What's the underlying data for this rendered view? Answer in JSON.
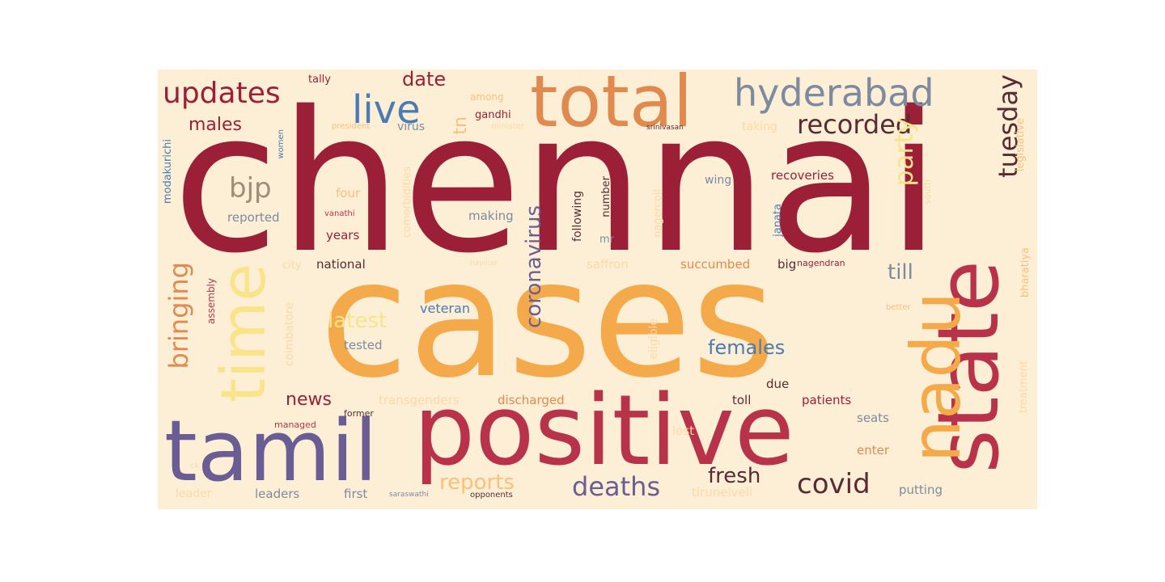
{
  "background": "#fdefd6",
  "palette": {
    "crimson": "#9b1f37",
    "red": "#b8334a",
    "orange": "#f4a94a",
    "lightorange": "#f9c07a",
    "peach": "#fcd9a6",
    "yellow": "#f9e48a",
    "rust": "#e08a4f",
    "purple": "#6a5d93",
    "blue": "#4a7cb3",
    "gray": "#7d8aa0",
    "taupe": "#a08c7a",
    "dark": "#5a2a33"
  },
  "words": [
    {
      "text": "chennai",
      "color": "crimson"
    },
    {
      "text": "cases",
      "color": "orange"
    },
    {
      "text": "positive",
      "color": "red"
    },
    {
      "text": "total",
      "color": "rust"
    },
    {
      "text": "tamil",
      "color": "purple"
    },
    {
      "text": "state",
      "color": "red"
    },
    {
      "text": "nadu",
      "color": "orange"
    },
    {
      "text": "time",
      "color": "yellow"
    },
    {
      "text": "hyderabad",
      "color": "gray"
    },
    {
      "text": "updates",
      "color": "crimson"
    },
    {
      "text": "live",
      "color": "blue"
    },
    {
      "text": "recorded",
      "color": "dark"
    },
    {
      "text": "bringing",
      "color": "rust"
    },
    {
      "text": "tuesday",
      "color": "dark"
    },
    {
      "text": "deaths",
      "color": "purple"
    },
    {
      "text": "covid",
      "color": "dark"
    },
    {
      "text": "bjp",
      "color": "taupe"
    },
    {
      "text": "party",
      "color": "yellow"
    },
    {
      "text": "coronavirus",
      "color": "purple"
    },
    {
      "text": "fresh",
      "color": "dark"
    },
    {
      "text": "reports",
      "color": "lightorange"
    },
    {
      "text": "females",
      "color": "blue"
    },
    {
      "text": "latest",
      "color": "yellow"
    },
    {
      "text": "date",
      "color": "crimson"
    },
    {
      "text": "males",
      "color": "crimson"
    },
    {
      "text": "till",
      "color": "gray"
    },
    {
      "text": "news",
      "color": "crimson"
    },
    {
      "text": "tn",
      "color": "lightorange"
    },
    {
      "text": "veteran",
      "color": "blue"
    },
    {
      "text": "discharged",
      "color": "rust"
    },
    {
      "text": "patients",
      "color": "crimson"
    },
    {
      "text": "transgenders",
      "color": "peach"
    },
    {
      "text": "putting",
      "color": "gray"
    },
    {
      "text": "tirunelveli",
      "color": "peach"
    },
    {
      "text": "succumbed",
      "color": "rust"
    },
    {
      "text": "saffron",
      "color": "peach"
    },
    {
      "text": "national",
      "color": "dark"
    },
    {
      "text": "recoveries",
      "color": "crimson"
    },
    {
      "text": "reported",
      "color": "gray"
    },
    {
      "text": "years",
      "color": "crimson"
    },
    {
      "text": "four",
      "color": "lightorange"
    },
    {
      "text": "making",
      "color": "gray"
    },
    {
      "text": "tested",
      "color": "gray"
    },
    {
      "text": "leaders",
      "color": "gray"
    },
    {
      "text": "first",
      "color": "gray"
    },
    {
      "text": "lost",
      "color": "peach"
    },
    {
      "text": "enter",
      "color": "rust"
    },
    {
      "text": "seats",
      "color": "gray"
    },
    {
      "text": "toll",
      "color": "dark"
    },
    {
      "text": "due",
      "color": "dark"
    },
    {
      "text": "big",
      "color": "dark"
    },
    {
      "text": "nagendran",
      "color": "crimson"
    },
    {
      "text": "wing",
      "color": "gray"
    },
    {
      "text": "virus",
      "color": "gray"
    },
    {
      "text": "gandhi",
      "color": "crimson"
    },
    {
      "text": "among",
      "color": "lightorange"
    },
    {
      "text": "tally",
      "color": "crimson"
    },
    {
      "text": "taking",
      "color": "peach"
    },
    {
      "text": "city",
      "color": "peach"
    },
    {
      "text": "leader",
      "color": "peach"
    },
    {
      "text": "managed",
      "color": "red"
    },
    {
      "text": "former",
      "color": "dark"
    },
    {
      "text": "saraswathi",
      "color": "gray"
    },
    {
      "text": "opponents",
      "color": "dark"
    },
    {
      "text": "president",
      "color": "lightorange"
    },
    {
      "text": "minister",
      "color": "peach"
    },
    {
      "text": "srinivasan",
      "color": "dark"
    },
    {
      "text": "vanathi",
      "color": "red"
    },
    {
      "text": "better",
      "color": "lightorange"
    },
    {
      "text": "nayinar",
      "color": "peach"
    },
    {
      "text": "ck",
      "color": "peach"
    },
    {
      "text": "modakurichi",
      "color": "blue"
    },
    {
      "text": "women",
      "color": "blue"
    },
    {
      "text": "assembly",
      "color": "red"
    },
    {
      "text": "coimbatore",
      "color": "peach"
    },
    {
      "text": "comorbidities",
      "color": "peach"
    },
    {
      "text": "following",
      "color": "dark"
    },
    {
      "text": "number",
      "color": "dark"
    },
    {
      "text": "mr",
      "color": "gray"
    },
    {
      "text": "nagercoil",
      "color": "peach"
    },
    {
      "text": "janata",
      "color": "blue"
    },
    {
      "text": "eligible",
      "color": "peach"
    },
    {
      "text": "south",
      "color": "peach"
    },
    {
      "text": "legislative",
      "color": "lightorange"
    },
    {
      "text": "bharatiya",
      "color": "lightorange"
    },
    {
      "text": "treatment",
      "color": "peach"
    }
  ]
}
